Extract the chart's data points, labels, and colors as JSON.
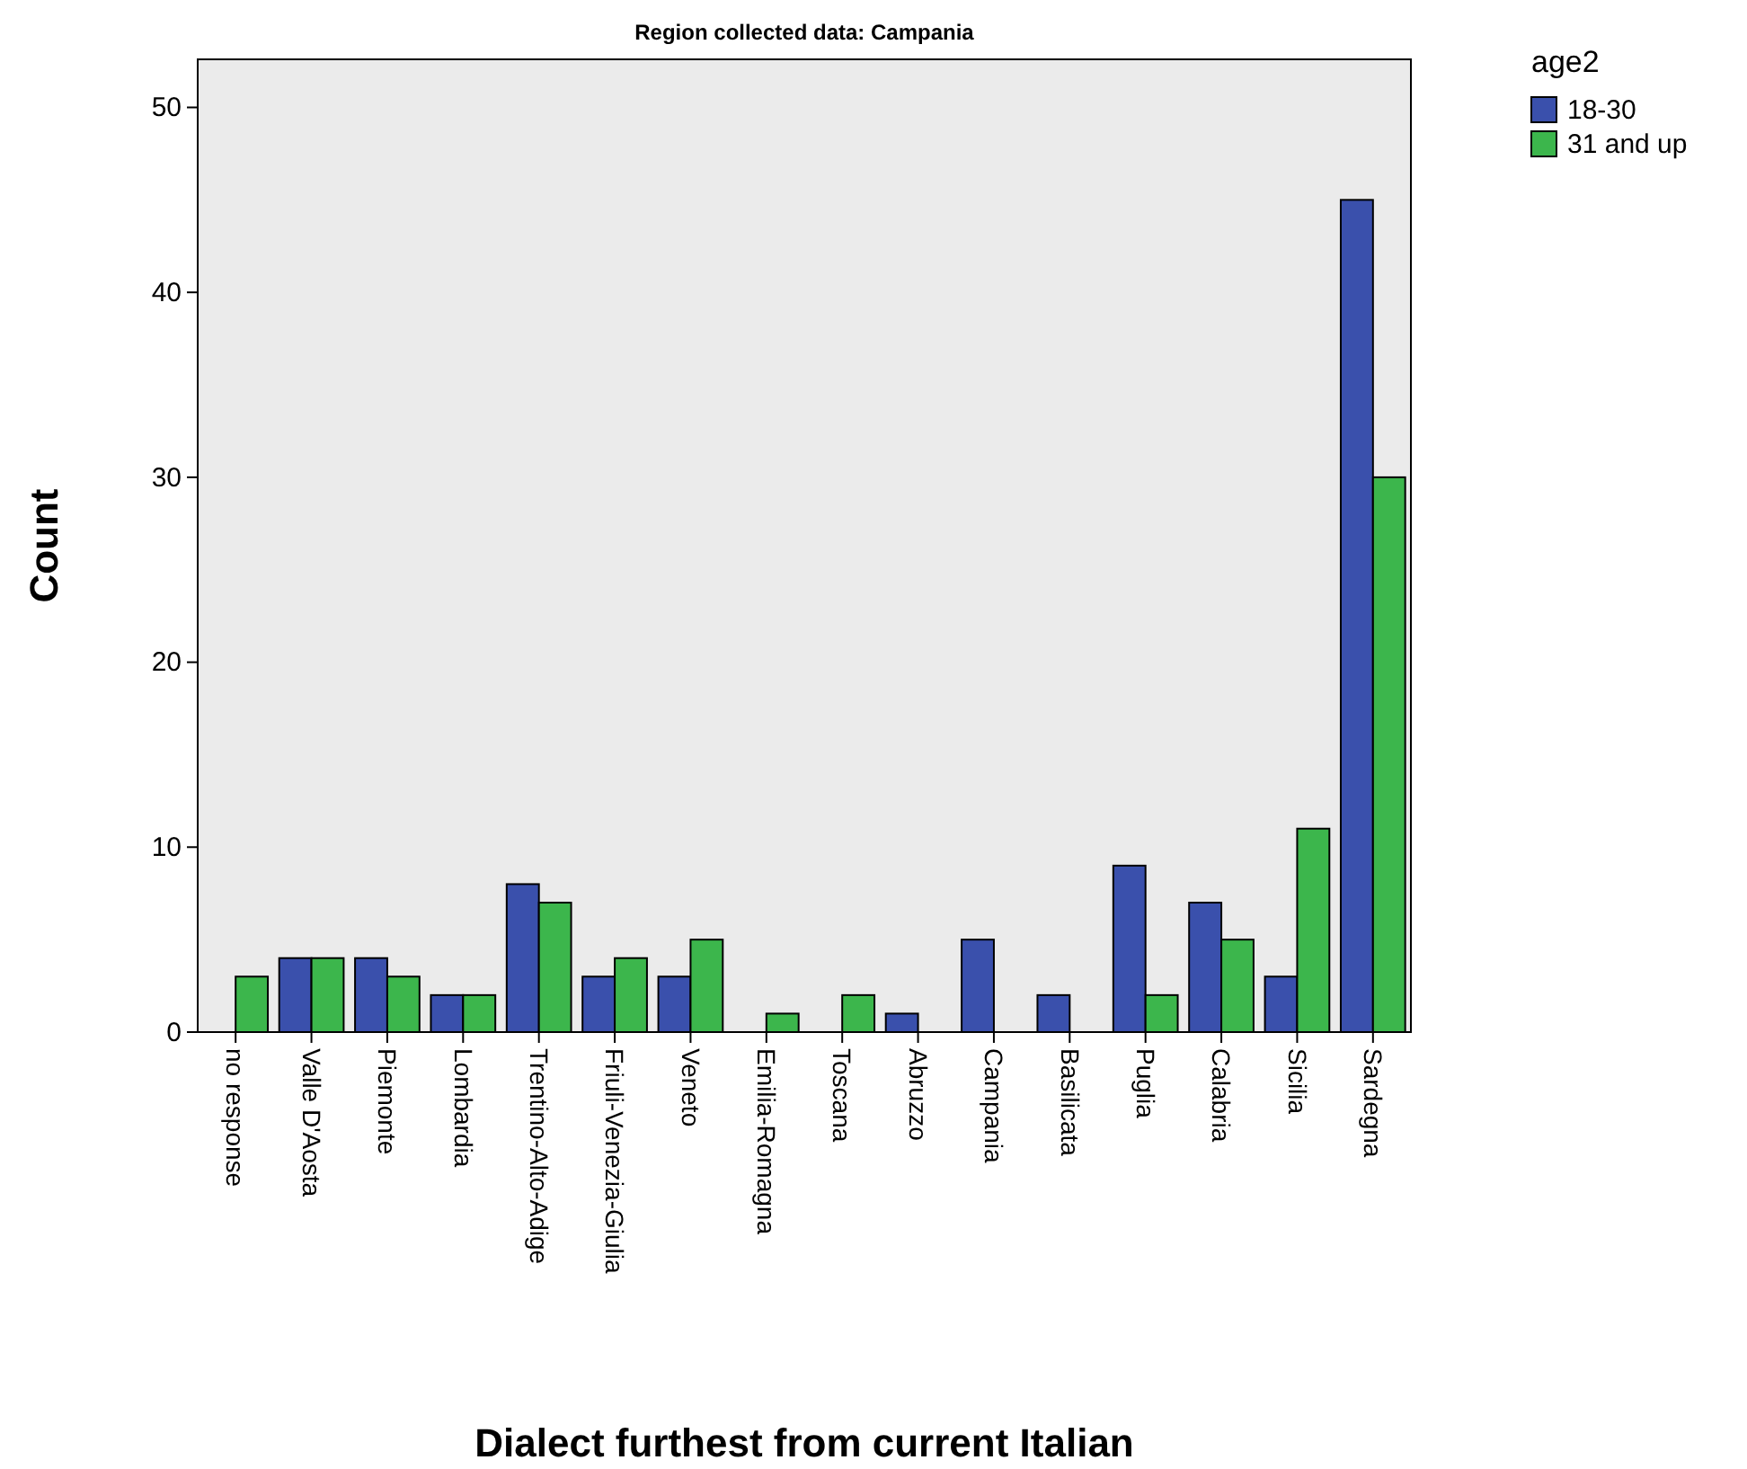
{
  "chart_data": {
    "type": "bar",
    "title": "Region collected data: Campania",
    "xlabel": "Dialect furthest from current Italian",
    "ylabel": "Count",
    "legend_title": "age2",
    "legend": "top right",
    "categories": [
      "no response",
      "Valle D'Aosta",
      "Piemonte",
      "Lombardia",
      "Trentino-Alto-Adige",
      "Friuli-Venezia-Giulia",
      "Veneto",
      "Emilia-Romagna",
      "Toscana",
      "Abruzzo",
      "Campania",
      "Basilicata",
      "Puglia",
      "Calabria",
      "Sicilia",
      "Sardegna"
    ],
    "series": [
      {
        "name": "18-30",
        "color": "#3a50ac",
        "values": [
          null,
          4,
          4,
          2,
          8,
          3,
          3,
          null,
          null,
          1,
          5,
          2,
          9,
          7,
          3,
          45
        ]
      },
      {
        "name": "31 and up",
        "color": "#3cb64c",
        "values": [
          3,
          4,
          3,
          2,
          7,
          4,
          5,
          1,
          2,
          null,
          null,
          null,
          2,
          5,
          11,
          30
        ]
      }
    ],
    "ylim": [
      0,
      52.6
    ],
    "yticks": [
      0,
      10,
      20,
      30,
      40,
      50
    ],
    "grid": false
  }
}
